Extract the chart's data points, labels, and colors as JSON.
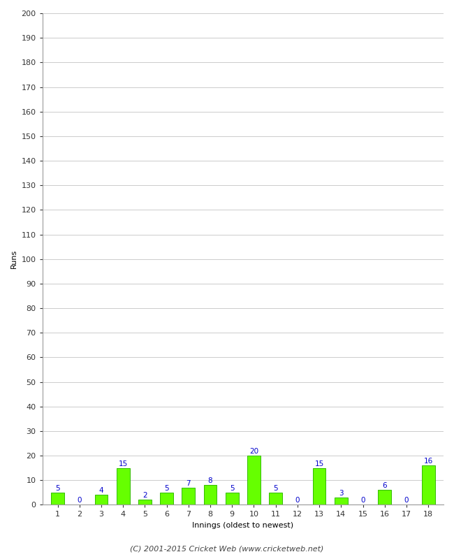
{
  "innings": [
    1,
    2,
    3,
    4,
    5,
    6,
    7,
    8,
    9,
    10,
    11,
    12,
    13,
    14,
    15,
    16,
    17,
    18
  ],
  "runs": [
    5,
    0,
    4,
    15,
    2,
    5,
    7,
    8,
    5,
    20,
    5,
    0,
    15,
    3,
    0,
    6,
    0,
    16
  ],
  "bar_color": "#66ff00",
  "bar_edge_color": "#33bb00",
  "label_color": "#0000cc",
  "ylabel": "Runs",
  "xlabel": "Innings (oldest to newest)",
  "footer": "(C) 2001-2015 Cricket Web (www.cricketweb.net)",
  "ylim": [
    0,
    200
  ],
  "yticks": [
    0,
    10,
    20,
    30,
    40,
    50,
    60,
    70,
    80,
    90,
    100,
    110,
    120,
    130,
    140,
    150,
    160,
    170,
    180,
    190,
    200
  ],
  "bg_color": "#ffffff",
  "grid_color": "#cccccc",
  "label_fontsize": 7.5,
  "axis_fontsize": 8,
  "footer_fontsize": 8
}
